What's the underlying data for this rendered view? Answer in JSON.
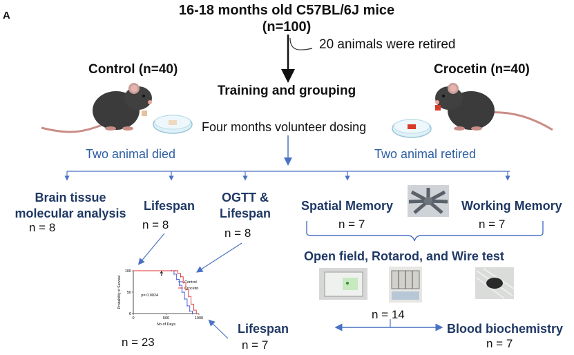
{
  "panel_label": "A",
  "top": {
    "title": "16-18 months old C57BL/6J mice",
    "n_total": "(n=100)",
    "retired_note": "20 animals were retired",
    "training": "Training and grouping"
  },
  "control": {
    "label": "Control (n=40)",
    "note": "Two animal died"
  },
  "crocetin": {
    "label": "Crocetin (n=40)",
    "note": "Two animal retired"
  },
  "dosing": "Four months volunteer dosing",
  "branches": {
    "brain_title": "Brain tissue\nmolecular analysis",
    "brain_n": "n = 8",
    "lifespan1_title": "Lifespan",
    "lifespan1_n": "n = 8",
    "ogtt_title": "OGTT &\nLifespan",
    "ogtt_n": "n = 8",
    "spatial_title": "Spatial Memory",
    "spatial_n": "n = 7",
    "working_title": "Working Memory",
    "working_n": "n = 7",
    "openfield_title": "Open field, Rotarod, and Wire test",
    "openfield_n": "n = 14",
    "lifespan2_title": "Lifespan",
    "lifespan2_n": "n = 7",
    "blood_title": "Blood biochemistry",
    "blood_n": "n = 7",
    "survival_total_n": "n = 23"
  },
  "chart_data": {
    "type": "line",
    "ylabel": "Probability of Survival",
    "xlabel": "No of Days",
    "annotation": "p= 0.0024",
    "xlim": [
      0,
      1000
    ],
    "ylim": [
      0,
      100
    ],
    "xticks": [
      "0",
      "500",
      "1000"
    ],
    "yticks": [
      "0",
      "50",
      "100"
    ],
    "series": [
      {
        "name": "Control",
        "color": "#3a4fd8",
        "x": [
          0,
          580,
          620,
          660,
          700,
          740,
          780,
          820,
          860,
          900
        ],
        "y": [
          100,
          100,
          92,
          80,
          66,
          50,
          34,
          18,
          6,
          0
        ]
      },
      {
        "name": "Crocetin",
        "color": "#e03030",
        "x": [
          0,
          640,
          680,
          720,
          760,
          800,
          840,
          880,
          920,
          960
        ],
        "y": [
          100,
          100,
          94,
          86,
          72,
          56,
          40,
          22,
          8,
          0
        ]
      }
    ]
  },
  "colors": {
    "title_navy": "#1f3864",
    "note_blue": "#2e5fa3",
    "arrow_blue": "#4a72c4"
  }
}
